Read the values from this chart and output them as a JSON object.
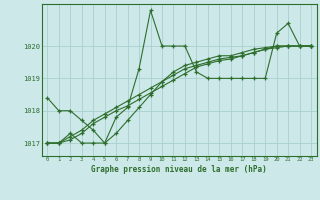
{
  "xlabel": "Graphe pression niveau de la mer (hPa)",
  "bg_color": "#cce8e8",
  "line_color": "#2d6e2d",
  "grid_color": "#aacfcf",
  "xlim": [
    -0.5,
    23.5
  ],
  "ylim": [
    1016.6,
    1021.3
  ],
  "yticks": [
    1017,
    1018,
    1019,
    1020
  ],
  "xticks": [
    0,
    1,
    2,
    3,
    4,
    5,
    6,
    7,
    8,
    9,
    10,
    11,
    12,
    13,
    14,
    15,
    16,
    17,
    18,
    19,
    20,
    21,
    22,
    23
  ],
  "hours": [
    0,
    1,
    2,
    3,
    4,
    5,
    6,
    7,
    8,
    9,
    10,
    11,
    12,
    13,
    14,
    15,
    16,
    17,
    18,
    19,
    20,
    21,
    22,
    23
  ],
  "series1": [
    1018.4,
    1018.0,
    1018.0,
    1017.7,
    1017.4,
    1017.0,
    1017.8,
    1018.1,
    1019.3,
    1021.1,
    1020.0,
    1020.0,
    1020.0,
    1019.2,
    1019.0,
    1019.0,
    1019.0,
    1019.0,
    1019.0,
    1019.0,
    1020.4,
    1020.7,
    1020.0,
    1020.0
  ],
  "series2": [
    1017.0,
    1017.0,
    1017.3,
    1017.0,
    1017.0,
    1017.0,
    1017.3,
    1017.7,
    1018.1,
    1018.5,
    1018.9,
    1019.2,
    1019.4,
    1019.5,
    1019.6,
    1019.7,
    1019.7,
    1019.8,
    1019.9,
    1019.95,
    1020.0,
    1020.0,
    1020.0,
    1020.0
  ],
  "series3": [
    1017.0,
    1017.0,
    1017.2,
    1017.4,
    1017.7,
    1017.9,
    1018.1,
    1018.3,
    1018.5,
    1018.7,
    1018.9,
    1019.1,
    1019.3,
    1019.4,
    1019.5,
    1019.6,
    1019.65,
    1019.7,
    1019.8,
    1019.9,
    1020.0,
    1020.0,
    1020.0,
    1020.0
  ],
  "series4": [
    1017.0,
    1017.0,
    1017.1,
    1017.3,
    1017.6,
    1017.8,
    1018.0,
    1018.15,
    1018.35,
    1018.55,
    1018.75,
    1018.95,
    1019.15,
    1019.35,
    1019.45,
    1019.55,
    1019.6,
    1019.7,
    1019.8,
    1019.9,
    1019.95,
    1020.0,
    1020.0,
    1020.0
  ]
}
